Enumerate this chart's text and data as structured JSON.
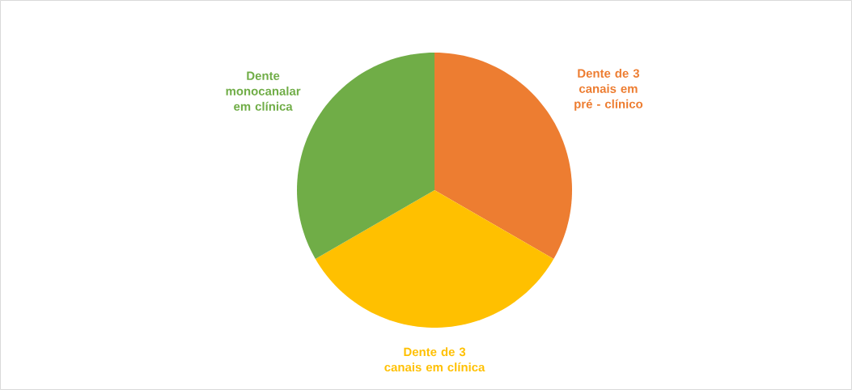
{
  "chart_data": {
    "type": "pie",
    "categories": [
      "Dente de 3 canais em pré - clínico",
      "Dente de 3 canais em clínica",
      "Dente monocanalar em clínica"
    ],
    "values": [
      33.33,
      33.33,
      33.34
    ],
    "colors": [
      "#ed7d31",
      "#ffc000",
      "#70ad47"
    ]
  }
}
